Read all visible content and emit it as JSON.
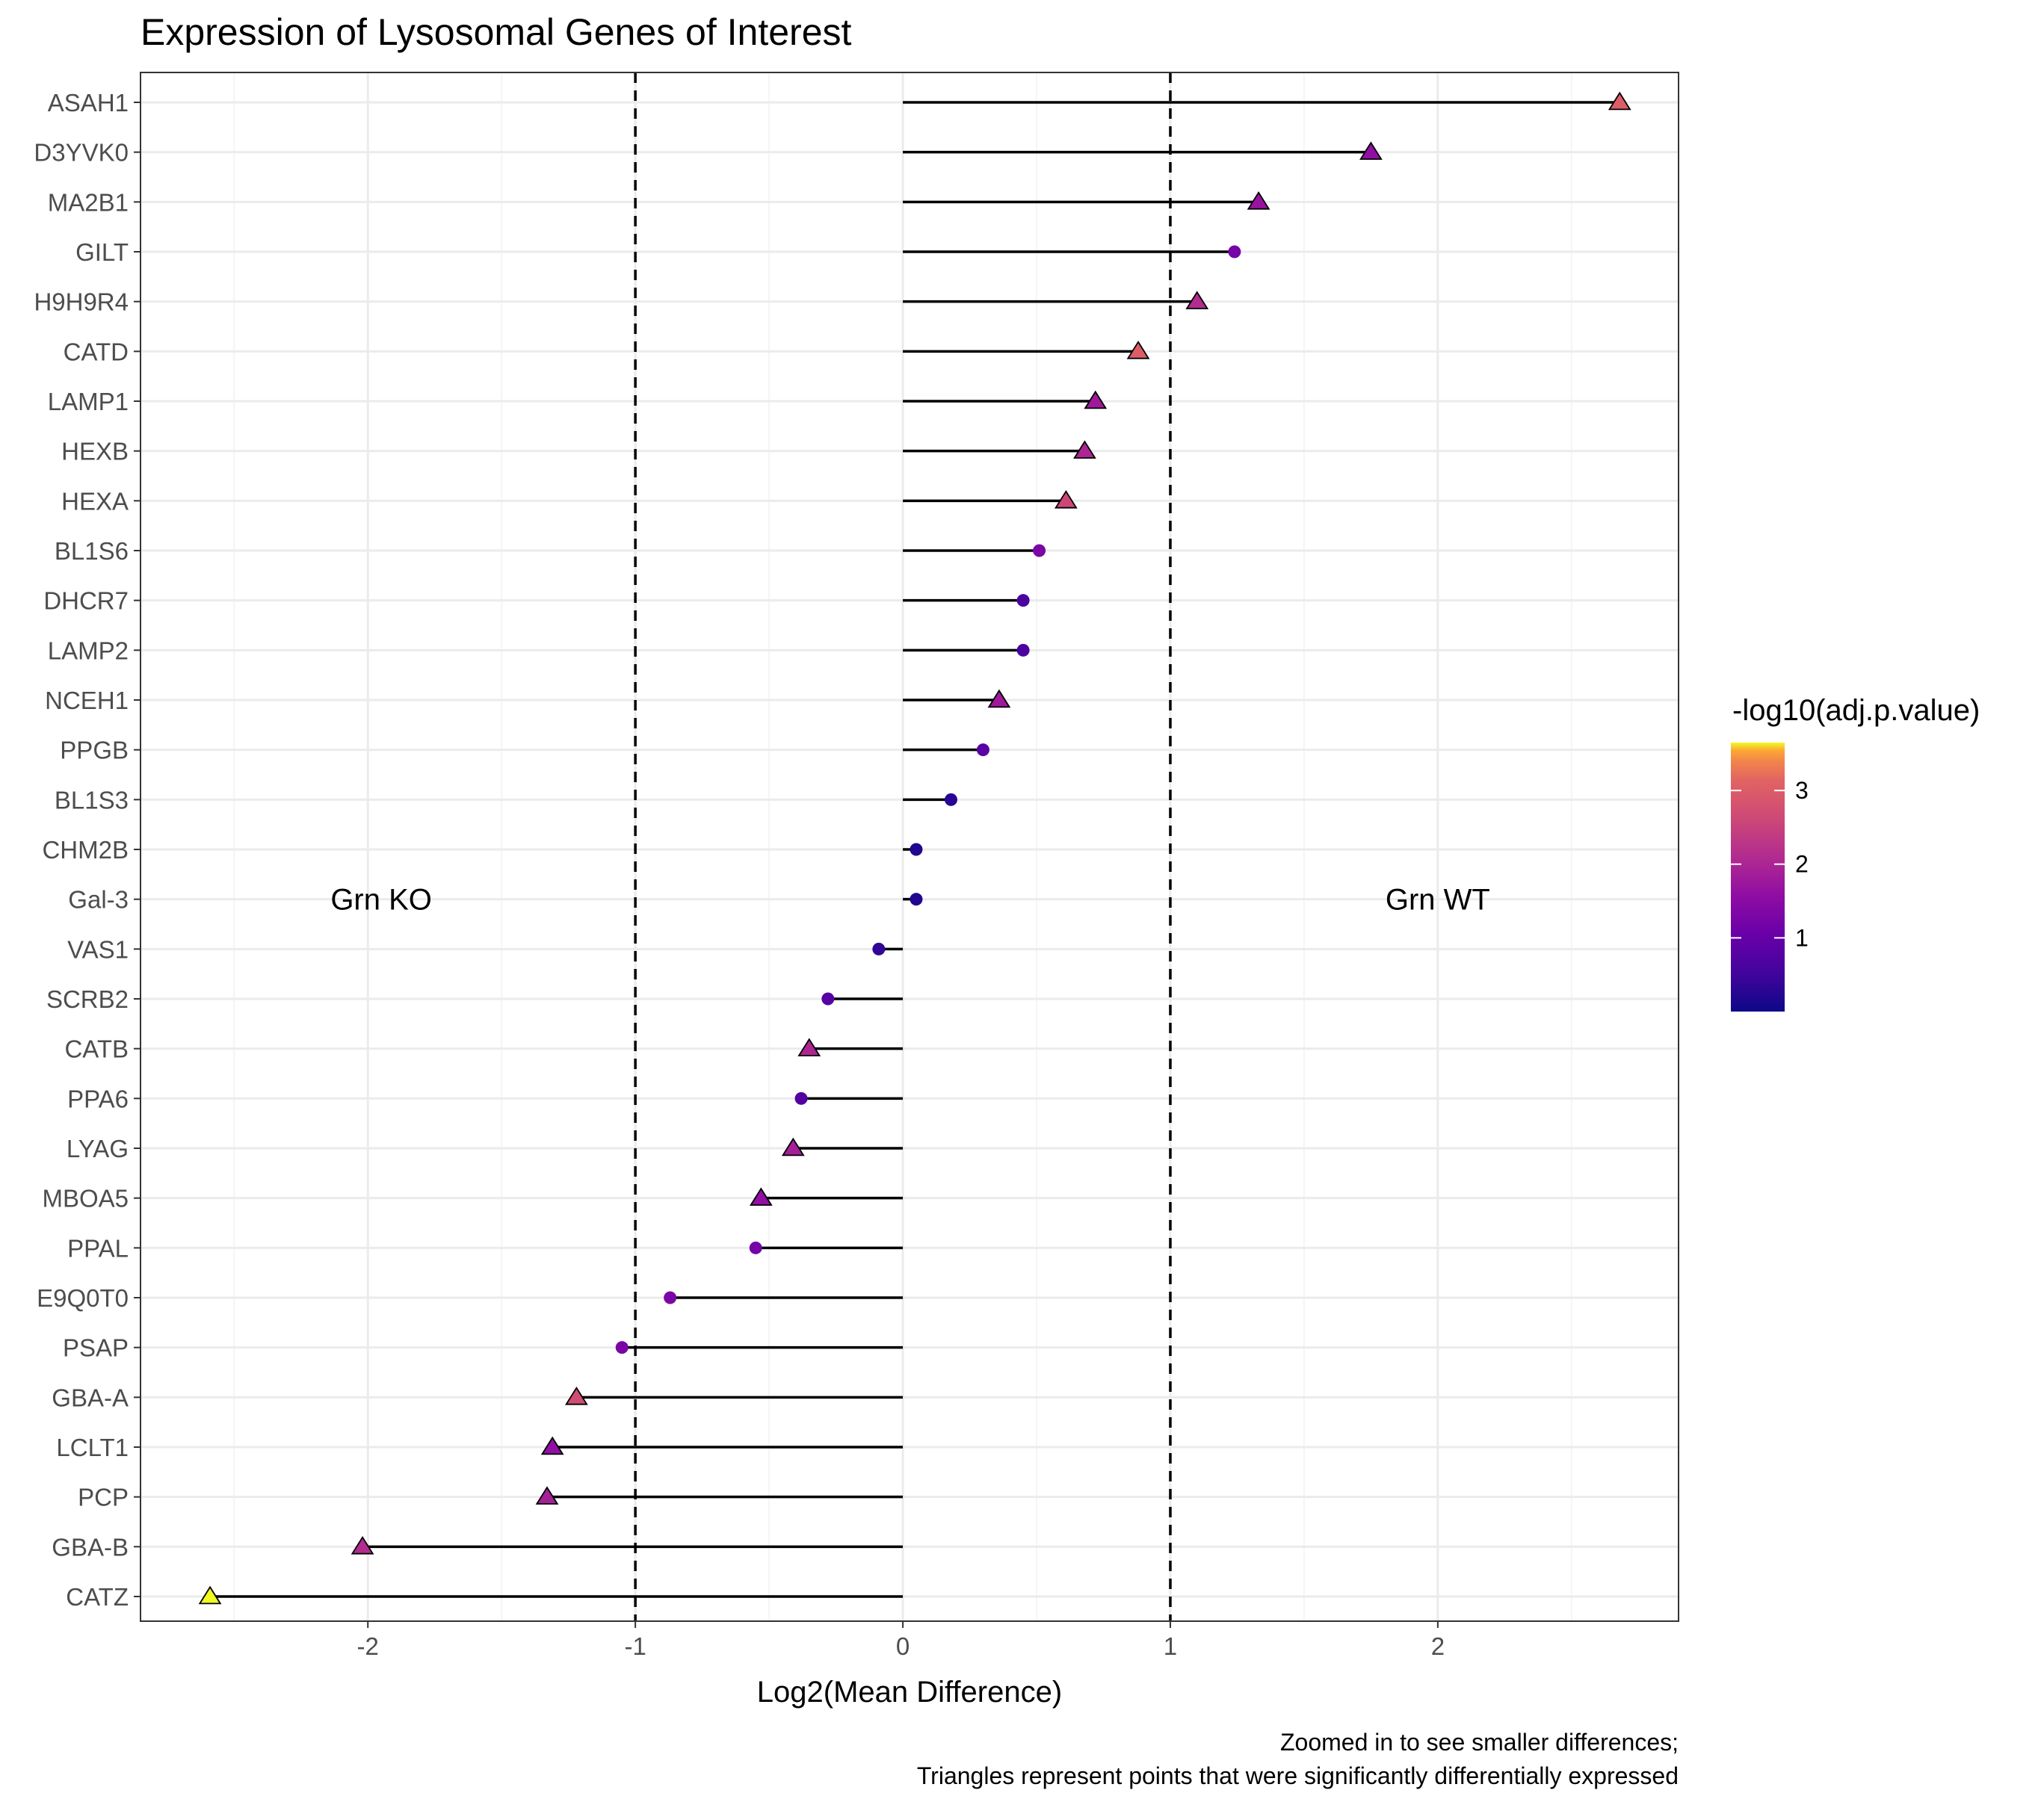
{
  "chart_data": {
    "type": "lollipop",
    "title": "Expression of Lysosomal Genes of Interest",
    "xlabel": "Log2(Mean Difference)",
    "ylabel": "",
    "xlim": [
      -2.85,
      2.9
    ],
    "xticks": [
      -2,
      -1,
      0,
      1,
      2
    ],
    "xtick_labels": [
      "-2",
      "-1",
      "0",
      "1",
      "2"
    ],
    "vlines_dashed": [
      -1,
      1
    ],
    "grid": true,
    "caption_lines": [
      "Zoomed in to see smaller differences;",
      "Triangles represent points that were significantly differentially expressed"
    ],
    "annotations": [
      {
        "text": "Grn KO",
        "x": -1.95,
        "y_category": "Gal-3"
      },
      {
        "text": "Grn WT",
        "x": 2.0,
        "y_category": "Gal-3"
      }
    ],
    "legend": {
      "title": "-log10(adj.p.value)",
      "placement": "right",
      "range": [
        0,
        3.65
      ],
      "ticks": [
        1,
        2,
        3
      ],
      "tick_labels": [
        "1",
        "2",
        "3"
      ],
      "colormap": "plasma"
    },
    "genes": [
      {
        "name": "ASAH1",
        "value": 2.68,
        "neglog10p": 3.0,
        "significant": true
      },
      {
        "name": "D3YVK0",
        "value": 1.75,
        "neglog10p": 1.6,
        "significant": true
      },
      {
        "name": "MA2B1",
        "value": 1.33,
        "neglog10p": 1.7,
        "significant": true
      },
      {
        "name": "GILT",
        "value": 1.24,
        "neglog10p": 1.2,
        "significant": false
      },
      {
        "name": "H9H9R4",
        "value": 1.1,
        "neglog10p": 2.1,
        "significant": true
      },
      {
        "name": "CATD",
        "value": 0.88,
        "neglog10p": 3.0,
        "significant": true
      },
      {
        "name": "LAMP1",
        "value": 0.72,
        "neglog10p": 1.8,
        "significant": true
      },
      {
        "name": "HEXB",
        "value": 0.68,
        "neglog10p": 2.0,
        "significant": true
      },
      {
        "name": "HEXA",
        "value": 0.61,
        "neglog10p": 2.6,
        "significant": true
      },
      {
        "name": "BL1S6",
        "value": 0.51,
        "neglog10p": 1.3,
        "significant": false
      },
      {
        "name": "DHCR7",
        "value": 0.45,
        "neglog10p": 0.65,
        "significant": false
      },
      {
        "name": "LAMP2",
        "value": 0.45,
        "neglog10p": 0.65,
        "significant": false
      },
      {
        "name": "NCEH1",
        "value": 0.36,
        "neglog10p": 1.8,
        "significant": true
      },
      {
        "name": "PPGB",
        "value": 0.3,
        "neglog10p": 0.85,
        "significant": false
      },
      {
        "name": "BL1S3",
        "value": 0.18,
        "neglog10p": 0.25,
        "significant": false
      },
      {
        "name": "CHM2B",
        "value": 0.05,
        "neglog10p": 0.2,
        "significant": false
      },
      {
        "name": "Gal-3",
        "value": 0.05,
        "neglog10p": 0.2,
        "significant": false
      },
      {
        "name": "VAS1",
        "value": -0.09,
        "neglog10p": 0.35,
        "significant": false
      },
      {
        "name": "SCRB2",
        "value": -0.28,
        "neglog10p": 0.8,
        "significant": false
      },
      {
        "name": "CATB",
        "value": -0.35,
        "neglog10p": 2.0,
        "significant": true
      },
      {
        "name": "PPA6",
        "value": -0.38,
        "neglog10p": 0.75,
        "significant": false
      },
      {
        "name": "LYAG",
        "value": -0.41,
        "neglog10p": 1.9,
        "significant": true
      },
      {
        "name": "MBOA5",
        "value": -0.53,
        "neglog10p": 1.6,
        "significant": true
      },
      {
        "name": "PPAL",
        "value": -0.55,
        "neglog10p": 1.2,
        "significant": false
      },
      {
        "name": "E9Q0T0",
        "value": -0.87,
        "neglog10p": 1.3,
        "significant": false
      },
      {
        "name": "PSAP",
        "value": -1.05,
        "neglog10p": 1.3,
        "significant": false
      },
      {
        "name": "GBA-A",
        "value": -1.22,
        "neglog10p": 2.7,
        "significant": true
      },
      {
        "name": "LCLT1",
        "value": -1.31,
        "neglog10p": 1.6,
        "significant": true
      },
      {
        "name": "PCP",
        "value": -1.33,
        "neglog10p": 1.9,
        "significant": true
      },
      {
        "name": "GBA-B",
        "value": -2.02,
        "neglog10p": 2.1,
        "significant": true
      },
      {
        "name": "CATZ",
        "value": -2.59,
        "neglog10p": 3.65,
        "significant": true
      }
    ]
  }
}
